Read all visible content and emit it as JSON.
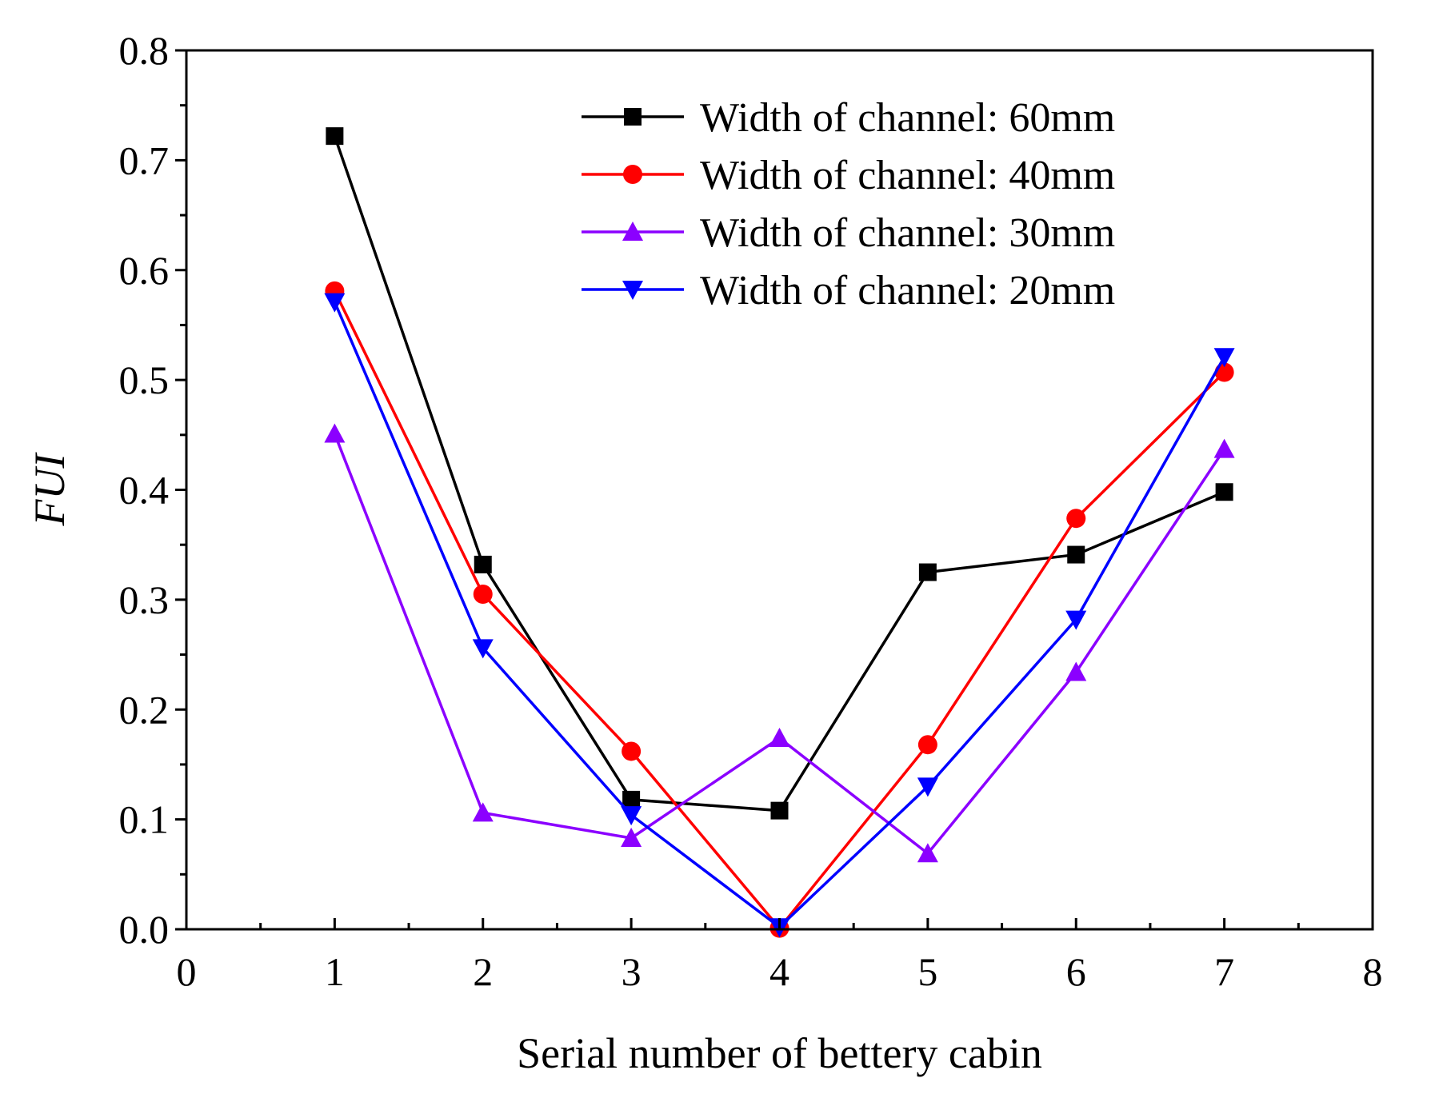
{
  "chart_data": {
    "type": "line",
    "title": "",
    "xlabel": "Serial number of bettery cabin",
    "ylabel": "FUI",
    "xlim": [
      0,
      8
    ],
    "ylim": [
      0.0,
      0.8
    ],
    "xticks": [
      0,
      1,
      2,
      3,
      4,
      5,
      6,
      7,
      8
    ],
    "xtick_labels": [
      "0",
      "1",
      "2",
      "3",
      "4",
      "5",
      "6",
      "7",
      "8"
    ],
    "yticks": [
      0.0,
      0.1,
      0.2,
      0.3,
      0.4,
      0.5,
      0.6,
      0.7,
      0.8
    ],
    "ytick_labels": [
      "0.0",
      "0.1",
      "0.2",
      "0.3",
      "0.4",
      "0.5",
      "0.6",
      "0.7",
      "0.8"
    ],
    "grid": false,
    "legend_position": "top-right",
    "x": [
      1,
      2,
      3,
      4,
      5,
      6,
      7
    ],
    "series": [
      {
        "name": "Width of channel: 60mm",
        "marker": "square",
        "color": "#000000",
        "values": [
          0.722,
          0.332,
          0.118,
          0.108,
          0.325,
          0.341,
          0.398
        ]
      },
      {
        "name": "Width of channel: 40mm",
        "marker": "circle",
        "color": "#ff0000",
        "values": [
          0.581,
          0.305,
          0.162,
          0.001,
          0.168,
          0.374,
          0.507
        ]
      },
      {
        "name": "Width of channel: 30mm",
        "marker": "triangle-up",
        "color": "#8b00ff",
        "values": [
          0.451,
          0.106,
          0.083,
          0.174,
          0.069,
          0.234,
          0.437
        ]
      },
      {
        "name": "Width of channel: 20mm",
        "marker": "triangle-down",
        "color": "#0000ff",
        "values": [
          0.571,
          0.256,
          0.104,
          0.002,
          0.13,
          0.282,
          0.521
        ]
      }
    ]
  }
}
